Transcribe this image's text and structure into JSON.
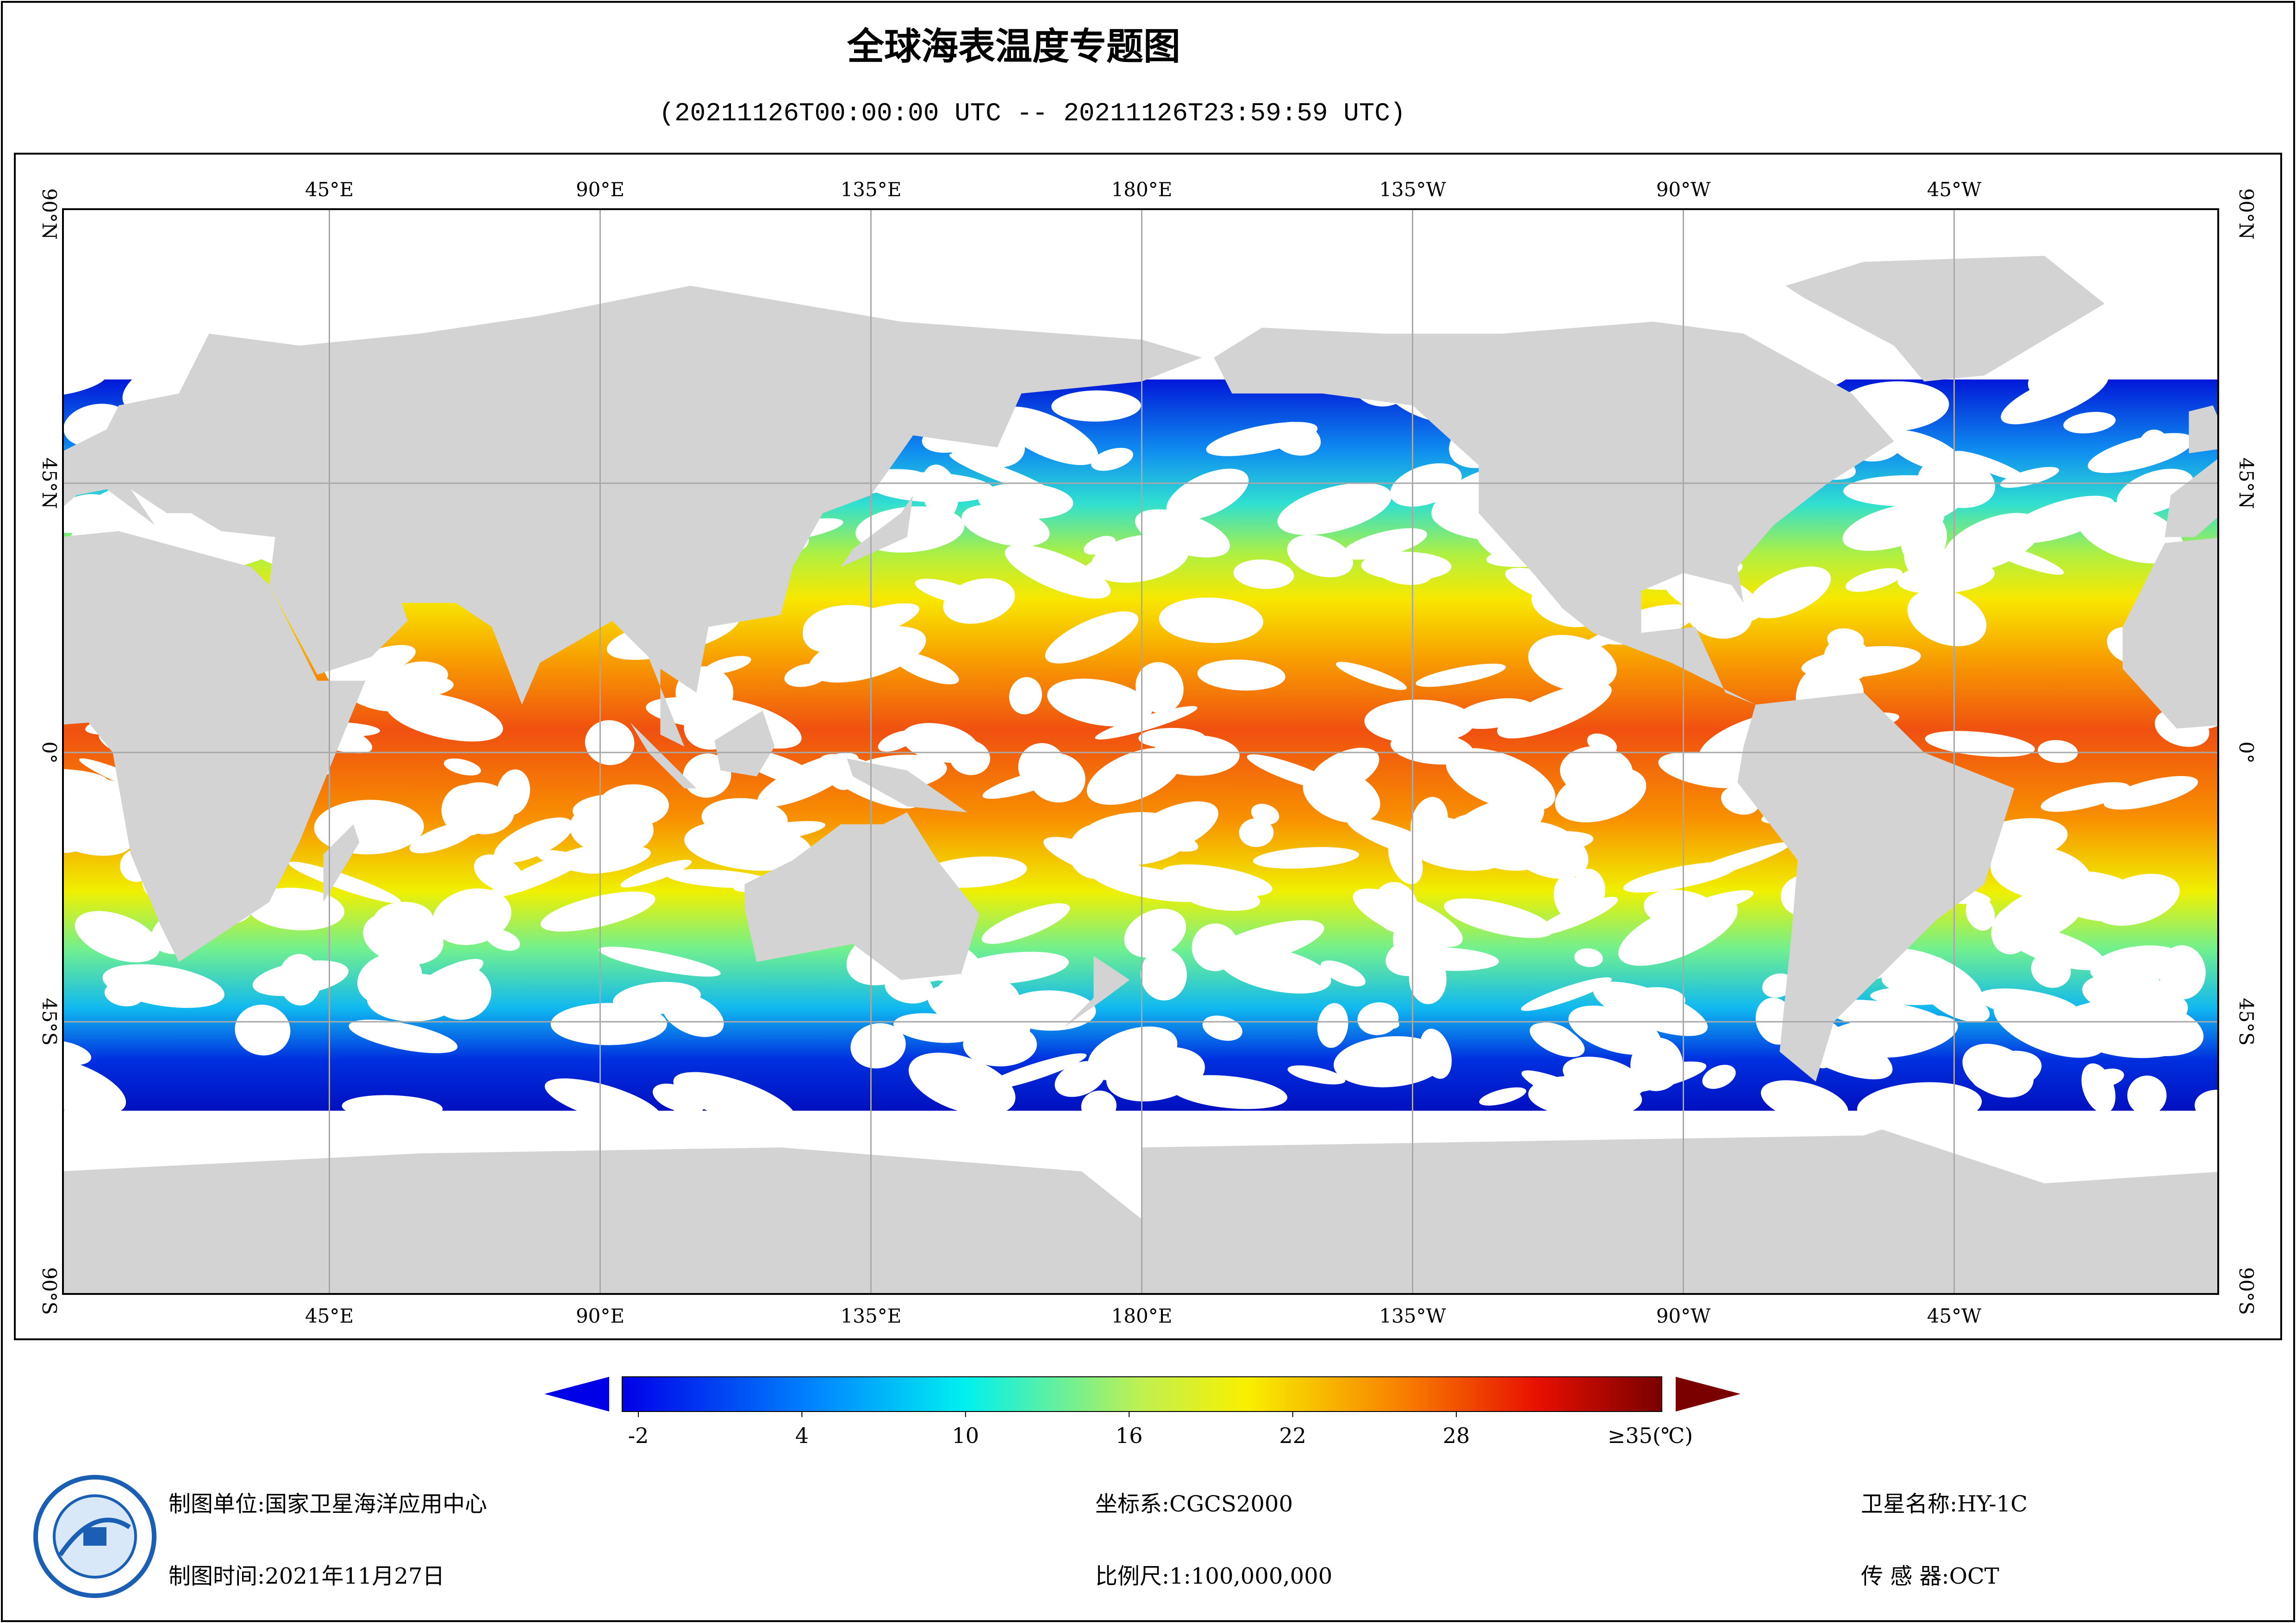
{
  "header": {
    "title": "全球海表温度专题图",
    "subtitle": "(20211126T00:00:00 UTC -- 20211126T23:59:59 UTC)"
  },
  "map": {
    "lon_labels": [
      "45°E",
      "90°E",
      "135°E",
      "180°E",
      "135°W",
      "90°W",
      "45°W"
    ],
    "lat_labels": [
      "90°N",
      "45°N",
      "0°",
      "45°S",
      "90°S"
    ]
  },
  "colorbar": {
    "ticks": [
      -2,
      4,
      10,
      16,
      22,
      28
    ],
    "max_label": "≥35(℃)"
  },
  "footer": {
    "unit": "制图单位:国家卫星海洋应用中心",
    "date": "制图时间:2021年11月27日",
    "crs": "坐标系:CGCS2000",
    "scale": "比例尺:1:100,000,000",
    "satellite": "卫星名称:HY-1C",
    "sensor": "传 感 器:OCT"
  }
}
